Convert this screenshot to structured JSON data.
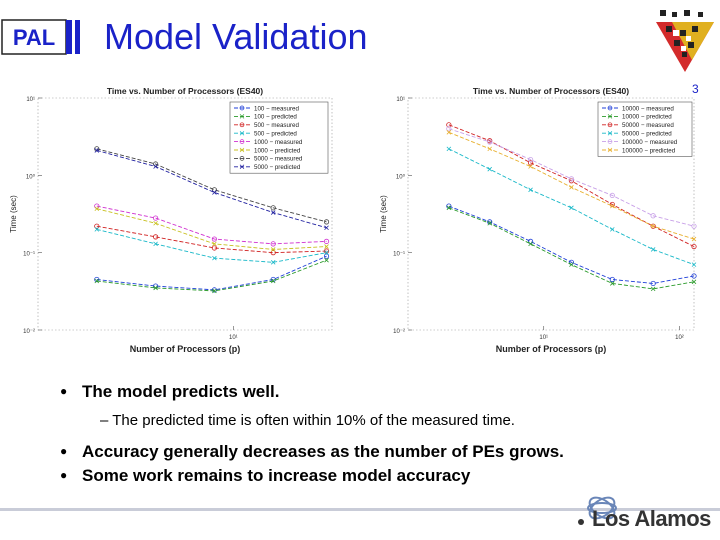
{
  "slide": {
    "title": "Model Validation",
    "logo_text": "PAL",
    "page_mark": "3",
    "footer_logo": "Los Alamos",
    "bullets": [
      {
        "level": 1,
        "text": "The model predicts well."
      },
      {
        "level": 2,
        "text": "The predicted time is often within 10% of the measured time."
      },
      {
        "level": 1,
        "text": "Accuracy generally decreases as the number of PEs grows."
      },
      {
        "level": 1,
        "text": "Some work remains to increase model accuracy"
      }
    ],
    "colors": {
      "title": "#1a22c8",
      "accent": "#1a22c8"
    }
  },
  "chart_data": [
    {
      "type": "line",
      "title": "Time vs. Number of Processors (ES40)",
      "xlabel": "Number of Processors (p)",
      "ylabel": "Time (sec)",
      "x_scale": "log",
      "y_scale": "log",
      "xlim": [
        1,
        32
      ],
      "ylim": [
        0.01,
        10
      ],
      "x_ticks": [
        {
          "value": 10,
          "label": "10¹"
        }
      ],
      "y_ticks": [
        {
          "value": 0.01,
          "label": "10⁻²"
        },
        {
          "value": 0.1,
          "label": "10⁻¹"
        },
        {
          "value": 1,
          "label": "10⁰"
        },
        {
          "value": 10,
          "label": "10¹"
        }
      ],
      "legend_position": "top-right",
      "x": [
        2,
        4,
        8,
        16,
        30
      ],
      "series": [
        {
          "name": "100 − measured",
          "color": "#1f3fd8",
          "marker": "circle",
          "values": [
            0.045,
            0.037,
            0.033,
            0.045,
            0.09
          ]
        },
        {
          "name": "100 − predicted",
          "color": "#2a9a2a",
          "marker": "x",
          "values": [
            0.043,
            0.035,
            0.032,
            0.043,
            0.08
          ]
        },
        {
          "name": "500 − measured",
          "color": "#d02020",
          "marker": "circle",
          "values": [
            0.22,
            0.16,
            0.115,
            0.1,
            0.105
          ]
        },
        {
          "name": "500 − predicted",
          "color": "#18b8c8",
          "marker": "x",
          "values": [
            0.2,
            0.13,
            0.085,
            0.075,
            0.1
          ]
        },
        {
          "name": "1000 − measured",
          "color": "#d030d0",
          "marker": "circle",
          "values": [
            0.4,
            0.28,
            0.15,
            0.13,
            0.14
          ]
        },
        {
          "name": "1000 − predicted",
          "color": "#c8c020",
          "marker": "x",
          "values": [
            0.37,
            0.24,
            0.13,
            0.11,
            0.12
          ]
        },
        {
          "name": "5000 − measured",
          "color": "#444444",
          "marker": "circle",
          "values": [
            2.2,
            1.4,
            0.65,
            0.38,
            0.25
          ]
        },
        {
          "name": "5000 − predicted",
          "color": "#2020a0",
          "marker": "x",
          "values": [
            2.1,
            1.3,
            0.6,
            0.33,
            0.21
          ]
        }
      ]
    },
    {
      "type": "line",
      "title": "Time vs. Number of Processors (ES40)",
      "xlabel": "Number of Processors (p)",
      "ylabel": "Time (sec)",
      "x_scale": "log",
      "y_scale": "log",
      "xlim": [
        1,
        128
      ],
      "ylim": [
        0.01,
        10
      ],
      "x_ticks": [
        {
          "value": 10,
          "label": "10¹"
        },
        {
          "value": 100,
          "label": "10²"
        }
      ],
      "y_ticks": [
        {
          "value": 0.01,
          "label": "10⁻²"
        },
        {
          "value": 0.1,
          "label": "10⁻¹"
        },
        {
          "value": 1,
          "label": "10⁰"
        },
        {
          "value": 10,
          "label": "10¹"
        }
      ],
      "legend_position": "top-right",
      "x": [
        2,
        4,
        8,
        16,
        32,
        64,
        128
      ],
      "series": [
        {
          "name": "10000 − measured",
          "color": "#1f3fd8",
          "marker": "circle",
          "values": [
            0.4,
            0.25,
            0.14,
            0.075,
            0.045,
            0.04,
            0.05
          ]
        },
        {
          "name": "10000 − predicted",
          "color": "#2a9a2a",
          "marker": "x",
          "values": [
            0.38,
            0.24,
            0.13,
            0.07,
            0.04,
            0.034,
            0.042
          ]
        },
        {
          "name": "50000 − measured",
          "color": "#d02020",
          "marker": "circle",
          "values": [
            4.5,
            2.8,
            1.45,
            0.85,
            0.42,
            0.22,
            0.12
          ]
        },
        {
          "name": "50000 − predicted",
          "color": "#18b8c8",
          "marker": "x",
          "values": [
            2.2,
            1.2,
            0.65,
            0.38,
            0.2,
            0.11,
            0.07
          ]
        },
        {
          "name": "100000 − measured",
          "color": "#c8a0e8",
          "marker": "circle",
          "values": [
            4.0,
            2.7,
            1.6,
            0.9,
            0.55,
            0.3,
            0.22
          ]
        },
        {
          "name": "100000 − predicted",
          "color": "#e8b030",
          "marker": "x",
          "values": [
            3.6,
            2.2,
            1.3,
            0.7,
            0.4,
            0.22,
            0.15
          ]
        }
      ]
    }
  ]
}
